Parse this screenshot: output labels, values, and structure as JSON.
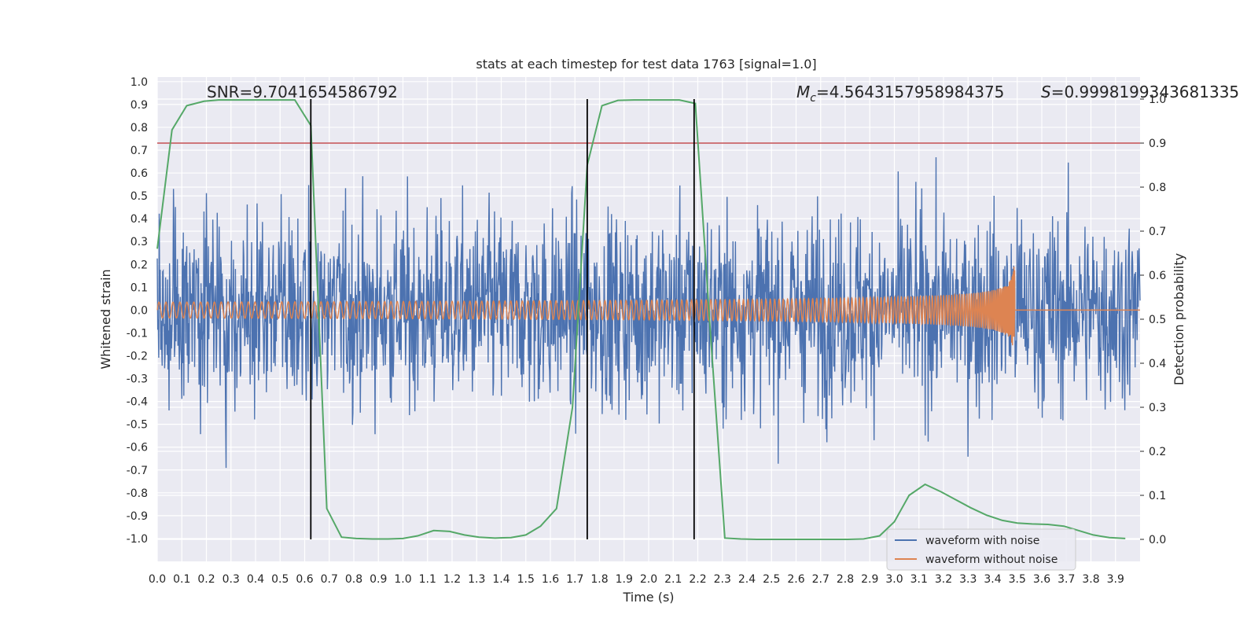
{
  "chart_data": {
    "type": "line",
    "title": "stats at each timestep for test data 1763 [signal=1.0]",
    "xlabel": "Time (s)",
    "ylabel": "Whitened strain",
    "y2label": "Detection probability",
    "xlim": [
      0.0,
      4.0
    ],
    "ylim": [
      -1.1,
      1.02
    ],
    "y2lim": [
      -0.05,
      1.05
    ],
    "xticks": [
      "0.0",
      "0.1",
      "0.2",
      "0.3",
      "0.4",
      "0.5",
      "0.6",
      "0.7",
      "0.8",
      "0.9",
      "1.0",
      "1.1",
      "1.2",
      "1.3",
      "1.4",
      "1.5",
      "1.6",
      "1.7",
      "1.8",
      "1.9",
      "2.0",
      "2.1",
      "2.2",
      "2.3",
      "2.4",
      "2.5",
      "2.6",
      "2.7",
      "2.8",
      "2.9",
      "3.0",
      "3.1",
      "3.2",
      "3.3",
      "3.4",
      "3.5",
      "3.6",
      "3.7",
      "3.8",
      "3.9"
    ],
    "yticks": [
      "1.0",
      "0.9",
      "0.8",
      "0.7",
      "0.6",
      "0.5",
      "0.4",
      "0.3",
      "0.2",
      "0.1",
      "0.0",
      "-0.1",
      "-0.2",
      "-0.3",
      "-0.4",
      "-0.5",
      "-0.6",
      "-0.7",
      "-0.8",
      "-0.9",
      "-1.0"
    ],
    "y2ticks": [
      "1.0",
      "0.9",
      "0.8",
      "0.7",
      "0.6",
      "0.5",
      "0.4",
      "0.3",
      "0.2",
      "0.1",
      "0.0"
    ],
    "grid": true,
    "legend_position": "bottom-right",
    "annotations": {
      "snr": "SNR=9.7041654586792",
      "mc_symbol": "M",
      "mc_sub": "c",
      "mc_value": "=4.5643157958984375",
      "s_symbol": "S",
      "s_value": "=0.9998199343681335"
    },
    "threshold": 0.9,
    "vlines": [
      0.625,
      1.75,
      2.185
    ],
    "series": [
      {
        "name": "waveform with noise",
        "color": "#4c72b0",
        "kind": "noise",
        "amplitude_envelope": 0.85,
        "t_range": [
          0.0,
          4.0
        ]
      },
      {
        "name": "waveform without noise",
        "color": "#dd8452",
        "kind": "chirp",
        "t_range": [
          0.0,
          4.0
        ],
        "merger_time": 3.49,
        "base_amplitude": 0.035,
        "peak_amplitude": 0.27,
        "base_frequency": 35
      },
      {
        "color": "#55a868",
        "kind": "probability",
        "x": [
          0.0,
          0.06,
          0.12,
          0.19,
          0.25,
          0.31,
          0.375,
          0.44,
          0.5,
          0.56,
          0.625,
          0.69,
          0.75,
          0.81,
          0.875,
          0.94,
          1.0,
          1.06,
          1.125,
          1.19,
          1.25,
          1.31,
          1.375,
          1.44,
          1.5,
          1.56,
          1.625,
          1.69,
          1.75,
          1.81,
          1.875,
          1.94,
          2.0,
          2.06,
          2.125,
          2.19,
          2.25,
          2.31,
          2.375,
          2.44,
          2.5,
          2.56,
          2.625,
          2.69,
          2.75,
          2.81,
          2.875,
          2.94,
          3.0,
          3.06,
          3.125,
          3.19,
          3.25,
          3.31,
          3.375,
          3.44,
          3.5,
          3.56,
          3.625,
          3.69,
          3.75,
          3.81,
          3.875,
          3.94
        ],
        "y": [
          0.66,
          0.93,
          0.985,
          0.995,
          0.998,
          0.998,
          0.998,
          0.998,
          0.998,
          0.998,
          0.94,
          0.07,
          0.005,
          0.002,
          0.001,
          0.001,
          0.002,
          0.008,
          0.02,
          0.018,
          0.01,
          0.005,
          0.003,
          0.004,
          0.01,
          0.03,
          0.07,
          0.3,
          0.85,
          0.985,
          0.997,
          0.998,
          0.998,
          0.998,
          0.998,
          0.99,
          0.48,
          0.003,
          0.001,
          0.0,
          0.0,
          0.0,
          0.0,
          0.0,
          0.0,
          0.0,
          0.001,
          0.008,
          0.04,
          0.1,
          0.125,
          0.108,
          0.09,
          0.072,
          0.055,
          0.043,
          0.037,
          0.035,
          0.034,
          0.03,
          0.02,
          0.01,
          0.004,
          0.002
        ]
      }
    ]
  }
}
